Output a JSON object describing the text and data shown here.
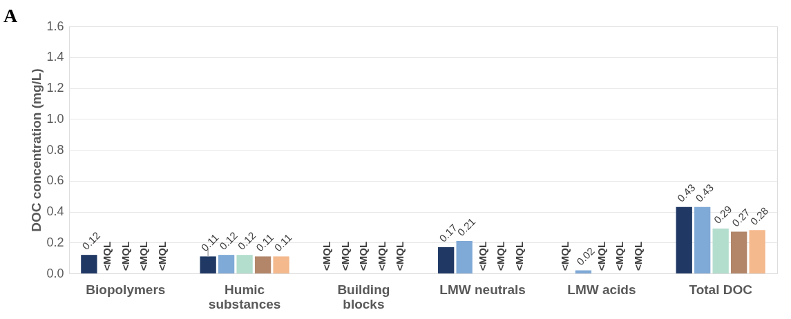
{
  "chart_data": {
    "type": "bar",
    "ylabel": "DOC concentration (mg/L)",
    "annotations": [
      "A"
    ],
    "categories": [
      "Biopolymers",
      "Humic substances",
      "Building blocks",
      "LMW neutrals",
      "LMW acids",
      "Total DOC"
    ],
    "series": [
      {
        "color": "#1f3864",
        "values": [
          0.12,
          0.11,
          null,
          0.17,
          null,
          0.43
        ],
        "value_labels": [
          "0.12",
          "0.11",
          "<MQL",
          "0.17",
          "<MQL",
          "0.43"
        ],
        "errors": [
          null,
          [
            0.11,
            0.16
          ],
          null,
          null,
          null,
          null
        ]
      },
      {
        "color": "#7fa9d6",
        "values": [
          null,
          0.12,
          null,
          0.21,
          0.02,
          0.43
        ],
        "value_labels": [
          "<MQL",
          "0.12",
          "<MQL",
          "0.21",
          "0.02",
          "0.43"
        ]
      },
      {
        "color": "#b3dece",
        "values": [
          null,
          0.12,
          null,
          null,
          null,
          0.29
        ],
        "value_labels": [
          "<MQL",
          "0.12",
          "<MQL",
          "<MQL",
          "<MQL",
          "0.29"
        ]
      },
      {
        "color": "#b3866a",
        "values": [
          null,
          0.11,
          null,
          null,
          null,
          0.27
        ],
        "value_labels": [
          "<MQL",
          "0.11",
          "<MQL",
          "<MQL",
          "<MQL",
          "0.27"
        ]
      },
      {
        "color": "#f4b98d",
        "values": [
          null,
          0.11,
          null,
          null,
          null,
          0.28
        ],
        "value_labels": [
          "<MQL",
          "0.11",
          "<MQL",
          "<MQL",
          "<MQL",
          "0.28"
        ]
      }
    ],
    "ylim": [
      0,
      1.6
    ],
    "yticks": [
      {
        "value": 0,
        "label": "0.0"
      },
      0.2,
      0.4,
      0.6,
      0.8,
      {
        "value": 1,
        "label": "1.0"
      },
      1.2,
      1.4,
      1.6
    ],
    "grid": "y",
    "legend": false
  }
}
